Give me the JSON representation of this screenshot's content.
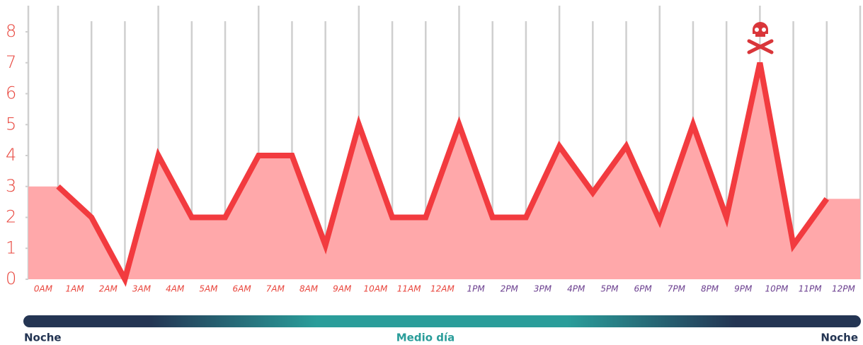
{
  "chart_data": {
    "type": "line",
    "categories": [
      "0AM",
      "1AM",
      "2AM",
      "3AM",
      "4AM",
      "5AM",
      "6AM",
      "7AM",
      "8AM",
      "9AM",
      "10AM",
      "11AM",
      "12AM",
      "1PM",
      "2PM",
      "3PM",
      "4PM",
      "5PM",
      "6PM",
      "7PM",
      "8PM",
      "9PM",
      "10PM",
      "11PM",
      "12PM"
    ],
    "series": [
      {
        "color": "#f23b3f",
        "values": [
          3,
          2,
          0,
          4,
          2,
          2,
          4,
          4,
          1.1,
          5,
          2,
          2,
          5,
          2,
          2,
          4.3,
          2.8,
          4.3,
          1.9,
          5,
          2,
          7,
          1.1,
          2.6,
          null
        ]
      }
    ],
    "area_color": "#ffa8aa",
    "ylim": [
      0,
      8
    ],
    "yticks": [
      0,
      1,
      2,
      3,
      4,
      5,
      6,
      7,
      8
    ],
    "grid": true,
    "timeline": {
      "left": "Noche",
      "center": "Medio día",
      "right": "Noche"
    }
  }
}
